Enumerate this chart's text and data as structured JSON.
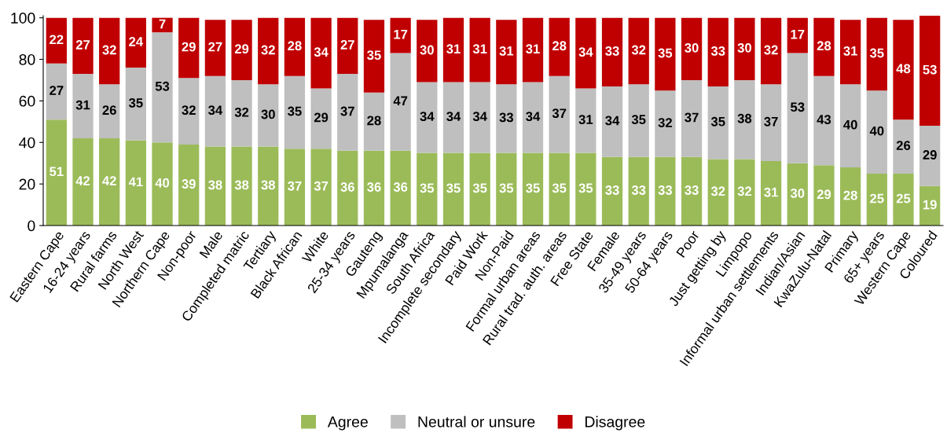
{
  "chart_data": {
    "type": "bar",
    "stacked": true,
    "data_labels": true,
    "legend": "bottom",
    "grid": false,
    "categories": [
      "Eastern Cape",
      "16-24 years",
      "Rural farms",
      "North West",
      "Northern Cape",
      "Non-poor",
      "Male",
      "Completed matric",
      "Tertiary",
      "Black African",
      "White",
      "25-34 years",
      "Gauteng",
      "Mpumalanga",
      "South Africa",
      "Incomplete secondary",
      "Paid Work",
      "Non-Paid",
      "Formal urban areas",
      "Rural trad. auth. areas",
      "Free State",
      "Female",
      "35-49 years",
      "50-64 years",
      "Poor",
      "Just getting by",
      "Limpopo",
      "Informal urban settlements",
      "Indian/Asian",
      "KwaZulu-Natal",
      "Primary",
      "65+ years",
      "Western Cape",
      "Coloured"
    ],
    "ylim": [
      0,
      101
    ],
    "yticks": [
      0,
      20,
      40,
      60,
      80,
      100
    ],
    "series": [
      {
        "name": "Agree",
        "color": "#9bbb59",
        "values": [
          51,
          42,
          42,
          41,
          40,
          39,
          38,
          38,
          38,
          37,
          37,
          36,
          36,
          36,
          35,
          35,
          35,
          35,
          35,
          35,
          35,
          33,
          33,
          33,
          33,
          32,
          32,
          31,
          30,
          29,
          28,
          25,
          25,
          19
        ]
      },
      {
        "name": "Neutral or unsure",
        "color": "#bfbfbf",
        "values": [
          27,
          31,
          26,
          35,
          53,
          32,
          34,
          32,
          30,
          35,
          29,
          37,
          28,
          47,
          34,
          34,
          34,
          33,
          34,
          37,
          31,
          34,
          35,
          32,
          37,
          35,
          38,
          37,
          53,
          43,
          40,
          40,
          26,
          29
        ]
      },
      {
        "name": "Disagree",
        "color": "#c00000",
        "values": [
          22,
          27,
          32,
          24,
          7,
          29,
          27,
          29,
          32,
          28,
          34,
          27,
          35,
          17,
          30,
          31,
          31,
          31,
          31,
          28,
          34,
          33,
          32,
          35,
          30,
          33,
          30,
          32,
          17,
          28,
          31,
          35,
          48,
          53
        ]
      }
    ]
  }
}
